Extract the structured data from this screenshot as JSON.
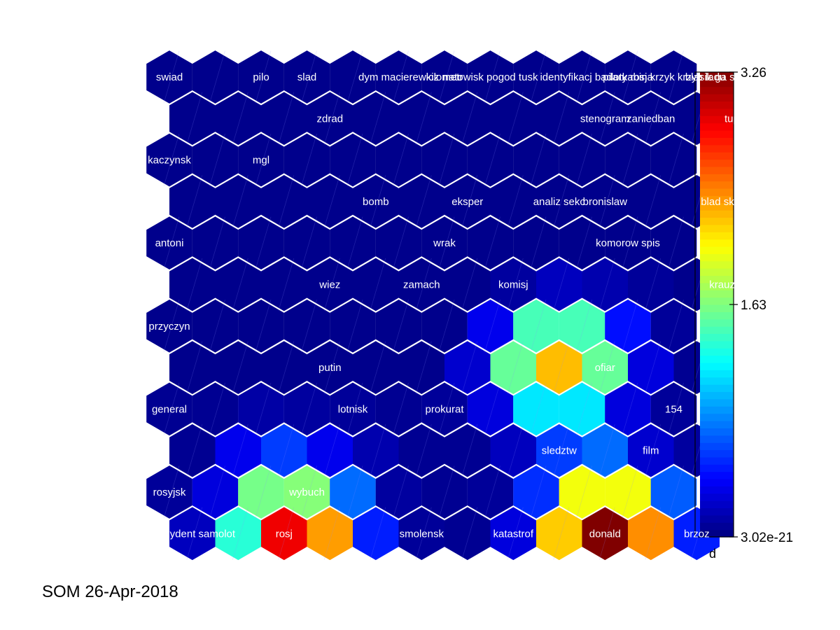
{
  "caption": "SOM 26-Apr-2018",
  "chart_data": {
    "type": "heatmap",
    "grid_shape": "hexagonal",
    "rows": 12,
    "cols": 12,
    "colormap": "jet",
    "value_range": [
      0,
      3.26
    ],
    "colorbar": {
      "title": "d",
      "ticks": [
        {
          "value": 3.26,
          "label": "3.26"
        },
        {
          "value": 1.63,
          "label": "1.63"
        },
        {
          "value": 0,
          "label": "3.02e-21"
        }
      ]
    },
    "values": [
      [
        0.04,
        0.04,
        0.04,
        0.04,
        0.04,
        0.04,
        0.04,
        0.04,
        0.04,
        0.04,
        0.04,
        0.04
      ],
      [
        0.04,
        0.04,
        0.04,
        0.04,
        0.04,
        0.04,
        0.04,
        0.04,
        0.04,
        0.04,
        0.04,
        0.04
      ],
      [
        0.04,
        0.04,
        0.04,
        0.04,
        0.04,
        0.04,
        0.04,
        0.04,
        0.04,
        0.04,
        0.04,
        0.04
      ],
      [
        0.04,
        0.04,
        0.04,
        0.04,
        0.04,
        0.04,
        0.04,
        0.04,
        0.04,
        0.04,
        0.04,
        0.04
      ],
      [
        0.04,
        0.04,
        0.04,
        0.04,
        0.04,
        0.04,
        0.04,
        0.04,
        0.04,
        0.04,
        0.04,
        0.04
      ],
      [
        0.04,
        0.04,
        0.04,
        0.04,
        0.04,
        0.04,
        0.04,
        0.1,
        0.2,
        0.15,
        0.08,
        0.04
      ],
      [
        0.04,
        0.04,
        0.04,
        0.04,
        0.04,
        0.04,
        0.04,
        0.35,
        1.45,
        1.45,
        0.45,
        0.08
      ],
      [
        0.04,
        0.04,
        0.04,
        0.04,
        0.04,
        0.04,
        0.25,
        1.55,
        2.25,
        1.55,
        0.3,
        0.06
      ],
      [
        0.06,
        0.06,
        0.12,
        0.1,
        0.08,
        0.06,
        0.08,
        0.3,
        1.15,
        1.15,
        0.3,
        0.08
      ],
      [
        0.06,
        0.35,
        0.6,
        0.35,
        0.15,
        0.06,
        0.06,
        0.2,
        0.6,
        0.75,
        0.25,
        0.1
      ],
      [
        0.08,
        0.3,
        1.6,
        1.65,
        0.75,
        0.1,
        0.06,
        0.08,
        0.55,
        2.0,
        2.0,
        0.7
      ],
      [
        0.2,
        1.35,
        2.9,
        2.35,
        0.5,
        0.08,
        0.06,
        0.3,
        2.2,
        3.26,
        2.4,
        0.5
      ]
    ],
    "labels": [
      {
        "row": 0,
        "col": 0,
        "text": "swiad"
      },
      {
        "row": 0,
        "col": 2,
        "text": "pilo"
      },
      {
        "row": 0,
        "col": 3,
        "text": "slad"
      },
      {
        "row": 0,
        "col": 5,
        "text": "dym macierewicz"
      },
      {
        "row": 0,
        "col": 6,
        "text": "kilometr"
      },
      {
        "row": 0,
        "col": 7,
        "text": "natowisk pogod tusk"
      },
      {
        "row": 0,
        "col": 9,
        "text": "identyfikacj badan"
      },
      {
        "row": 0,
        "col": 10,
        "text": "piloty rosja"
      },
      {
        "row": 0,
        "col": 11,
        "text": "kabin krzyk krzyb ladu"
      },
      {
        "row": 0,
        "col": 12,
        "text": "blasik ga skrzy"
      },
      {
        "row": 1,
        "col": 3,
        "text": "zdrad"
      },
      {
        "row": 1,
        "col": 9,
        "text": "stenogram"
      },
      {
        "row": 1,
        "col": 10,
        "text": "zaniedban"
      },
      {
        "row": 1,
        "col": 12,
        "text": "tupolew"
      },
      {
        "row": 2,
        "col": 0,
        "text": "kaczynsk"
      },
      {
        "row": 2,
        "col": 2,
        "text": "mgl"
      },
      {
        "row": 3,
        "col": 4,
        "text": "bomb"
      },
      {
        "row": 3,
        "col": 6,
        "text": "eksper"
      },
      {
        "row": 3,
        "col": 8,
        "text": "analiz sekc"
      },
      {
        "row": 3,
        "col": 9,
        "text": "bronislaw"
      },
      {
        "row": 3,
        "col": 12,
        "text": "blad skrzydl strzal"
      },
      {
        "row": 4,
        "col": 0,
        "text": "antoni"
      },
      {
        "row": 4,
        "col": 6,
        "text": "wrak"
      },
      {
        "row": 4,
        "col": 10,
        "text": "komorow spis"
      },
      {
        "row": 5,
        "col": 3,
        "text": "wiez"
      },
      {
        "row": 5,
        "col": 5,
        "text": "zamach"
      },
      {
        "row": 5,
        "col": 7,
        "text": "komisj"
      },
      {
        "row": 5,
        "col": 12,
        "text": "krauze zbrodn"
      },
      {
        "row": 6,
        "col": 0,
        "text": "przyczyn"
      },
      {
        "row": 7,
        "col": 3,
        "text": "putin"
      },
      {
        "row": 7,
        "col": 9,
        "text": "ofiar"
      },
      {
        "row": 8,
        "col": 0,
        "text": "general"
      },
      {
        "row": 8,
        "col": 4,
        "text": "lotnisk"
      },
      {
        "row": 8,
        "col": 6,
        "text": "prokurat"
      },
      {
        "row": 8,
        "col": 11,
        "text": "154"
      },
      {
        "row": 9,
        "col": 8,
        "text": "sledztw"
      },
      {
        "row": 9,
        "col": 10,
        "text": "film"
      },
      {
        "row": 10,
        "col": 0,
        "text": "rosyjsk"
      },
      {
        "row": 10,
        "col": 3,
        "text": "wybuch"
      },
      {
        "row": 11,
        "col": 0,
        "text": "prezydent samolot"
      },
      {
        "row": 11,
        "col": 2,
        "text": "rosj"
      },
      {
        "row": 11,
        "col": 5,
        "text": "smolensk"
      },
      {
        "row": 11,
        "col": 7,
        "text": "katastrof"
      },
      {
        "row": 11,
        "col": 9,
        "text": "donald"
      },
      {
        "row": 11,
        "col": 11,
        "text": "brzoz"
      }
    ]
  }
}
